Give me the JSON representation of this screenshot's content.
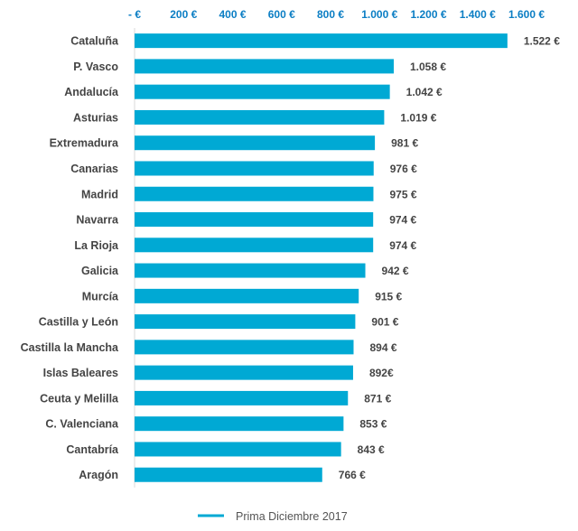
{
  "chart_data": {
    "type": "bar",
    "orientation": "horizontal",
    "categories": [
      "Cataluña",
      "P. Vasco",
      "Andalucía",
      "Asturias",
      "Extremadura",
      "Canarias",
      "Madrid",
      "Navarra",
      "La Rioja",
      "Galicia",
      "Murcía",
      "Castilla y León",
      "Castilla la Mancha",
      "Islas Baleares",
      "Ceuta y Melilla",
      "C. Valenciana",
      "Cantabría",
      "Aragón"
    ],
    "series": [
      {
        "name": "Prima Diciembre 2017",
        "values": [
          1522,
          1058,
          1042,
          1019,
          981,
          976,
          975,
          974,
          974,
          942,
          915,
          901,
          894,
          892,
          871,
          853,
          843,
          766
        ],
        "labels": [
          "1.522 €",
          "1.058 €",
          "1.042 €",
          "1.019 €",
          "981 €",
          "976 €",
          "975 €",
          "974 €",
          "974 €",
          "942 €",
          "915 €",
          "901 €",
          "894 €",
          "892€",
          "871 €",
          "853 €",
          "843 €",
          "766 €"
        ],
        "color": "#00a9d4"
      }
    ],
    "xlim": [
      0,
      1600
    ],
    "xticks": [
      0,
      200,
      400,
      600,
      800,
      1000,
      1200,
      1400,
      1600
    ],
    "xtick_labels": [
      "- €",
      "200 €",
      "400 €",
      "600 €",
      "800 €",
      "1.000 €",
      "1.200 €",
      "1.400 €",
      "1.600 €"
    ],
    "x_axis_position": "top",
    "grid": false,
    "legend": {
      "position": "bottom",
      "entries": [
        "Prima Diciembre 2017"
      ]
    },
    "tick_color": "#0b7ec4",
    "title": "",
    "xlabel": "",
    "ylabel": ""
  }
}
